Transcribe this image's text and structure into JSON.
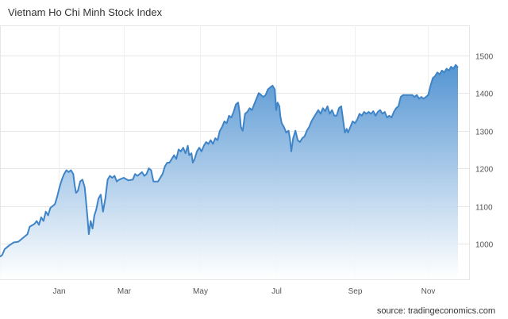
{
  "chart_data": {
    "type": "area",
    "title": "Vietnam Ho Chi Minh Stock Index",
    "source": "source: tradingeconomics.com",
    "xlabel": "",
    "ylabel": "",
    "x_ticks": [
      {
        "label": "Jan",
        "t": 0.129
      },
      {
        "label": "Mar",
        "t": 0.27
      },
      {
        "label": "May",
        "t": 0.436
      },
      {
        "label": "Jul",
        "t": 0.603
      },
      {
        "label": "Sep",
        "t": 0.774
      },
      {
        "label": "Nov",
        "t": 0.935
      }
    ],
    "y_ticks": [
      1000,
      1100,
      1200,
      1300,
      1400,
      1500
    ],
    "ylim": [
      905,
      1580
    ],
    "grid": true,
    "colors": {
      "line": "#3f84c7",
      "fill_top": "#4a8fd0",
      "fill_bottom": "#ffffff"
    },
    "series": [
      {
        "values": [
          [
            0.0,
            965
          ],
          [
            0.005,
            970
          ],
          [
            0.01,
            985
          ],
          [
            0.02,
            995
          ],
          [
            0.03,
            1003
          ],
          [
            0.04,
            1005
          ],
          [
            0.05,
            1015
          ],
          [
            0.06,
            1025
          ],
          [
            0.065,
            1045
          ],
          [
            0.075,
            1052
          ],
          [
            0.08,
            1060
          ],
          [
            0.085,
            1050
          ],
          [
            0.09,
            1070
          ],
          [
            0.095,
            1060
          ],
          [
            0.1,
            1085
          ],
          [
            0.105,
            1075
          ],
          [
            0.11,
            1095
          ],
          [
            0.115,
            1100
          ],
          [
            0.12,
            1105
          ],
          [
            0.125,
            1125
          ],
          [
            0.13,
            1150
          ],
          [
            0.135,
            1170
          ],
          [
            0.14,
            1185
          ],
          [
            0.145,
            1195
          ],
          [
            0.15,
            1190
          ],
          [
            0.155,
            1195
          ],
          [
            0.16,
            1185
          ],
          [
            0.163,
            1155
          ],
          [
            0.166,
            1135
          ],
          [
            0.17,
            1140
          ],
          [
            0.175,
            1165
          ],
          [
            0.18,
            1170
          ],
          [
            0.185,
            1150
          ],
          [
            0.188,
            1110
          ],
          [
            0.191,
            1070
          ],
          [
            0.194,
            1025
          ],
          [
            0.198,
            1060
          ],
          [
            0.202,
            1040
          ],
          [
            0.206,
            1075
          ],
          [
            0.21,
            1090
          ],
          [
            0.215,
            1120
          ],
          [
            0.22,
            1130
          ],
          [
            0.225,
            1085
          ],
          [
            0.23,
            1120
          ],
          [
            0.235,
            1170
          ],
          [
            0.24,
            1180
          ],
          [
            0.245,
            1175
          ],
          [
            0.25,
            1180
          ],
          [
            0.255,
            1165
          ],
          [
            0.26,
            1170
          ],
          [
            0.27,
            1175
          ],
          [
            0.28,
            1168
          ],
          [
            0.29,
            1170
          ],
          [
            0.295,
            1185
          ],
          [
            0.3,
            1180
          ],
          [
            0.31,
            1190
          ],
          [
            0.315,
            1180
          ],
          [
            0.32,
            1185
          ],
          [
            0.325,
            1200
          ],
          [
            0.33,
            1195
          ],
          [
            0.335,
            1165
          ],
          [
            0.345,
            1165
          ],
          [
            0.355,
            1185
          ],
          [
            0.36,
            1205
          ],
          [
            0.365,
            1215
          ],
          [
            0.37,
            1215
          ],
          [
            0.375,
            1225
          ],
          [
            0.38,
            1235
          ],
          [
            0.385,
            1225
          ],
          [
            0.39,
            1250
          ],
          [
            0.395,
            1245
          ],
          [
            0.4,
            1255
          ],
          [
            0.405,
            1240
          ],
          [
            0.41,
            1260
          ],
          [
            0.413,
            1235
          ],
          [
            0.418,
            1240
          ],
          [
            0.421,
            1215
          ],
          [
            0.425,
            1225
          ],
          [
            0.43,
            1245
          ],
          [
            0.435,
            1255
          ],
          [
            0.44,
            1245
          ],
          [
            0.445,
            1260
          ],
          [
            0.45,
            1270
          ],
          [
            0.455,
            1265
          ],
          [
            0.46,
            1275
          ],
          [
            0.465,
            1265
          ],
          [
            0.47,
            1280
          ],
          [
            0.475,
            1275
          ],
          [
            0.48,
            1300
          ],
          [
            0.485,
            1310
          ],
          [
            0.49,
            1325
          ],
          [
            0.495,
            1320
          ],
          [
            0.5,
            1340
          ],
          [
            0.505,
            1335
          ],
          [
            0.51,
            1350
          ],
          [
            0.515,
            1370
          ],
          [
            0.52,
            1375
          ],
          [
            0.523,
            1350
          ],
          [
            0.526,
            1310
          ],
          [
            0.53,
            1300
          ],
          [
            0.535,
            1345
          ],
          [
            0.54,
            1350
          ],
          [
            0.545,
            1360
          ],
          [
            0.55,
            1355
          ],
          [
            0.555,
            1370
          ],
          [
            0.56,
            1385
          ],
          [
            0.565,
            1400
          ],
          [
            0.57,
            1395
          ],
          [
            0.575,
            1390
          ],
          [
            0.58,
            1395
          ],
          [
            0.585,
            1410
          ],
          [
            0.59,
            1415
          ],
          [
            0.595,
            1420
          ],
          [
            0.6,
            1410
          ],
          [
            0.603,
            1355
          ],
          [
            0.606,
            1375
          ],
          [
            0.61,
            1365
          ],
          [
            0.612,
            1340
          ],
          [
            0.615,
            1320
          ],
          [
            0.62,
            1310
          ],
          [
            0.625,
            1295
          ],
          [
            0.63,
            1300
          ],
          [
            0.633,
            1280
          ],
          [
            0.636,
            1245
          ],
          [
            0.64,
            1280
          ],
          [
            0.645,
            1300
          ],
          [
            0.65,
            1275
          ],
          [
            0.655,
            1270
          ],
          [
            0.66,
            1280
          ],
          [
            0.665,
            1285
          ],
          [
            0.67,
            1300
          ],
          [
            0.675,
            1310
          ],
          [
            0.68,
            1325
          ],
          [
            0.685,
            1335
          ],
          [
            0.69,
            1345
          ],
          [
            0.695,
            1355
          ],
          [
            0.7,
            1345
          ],
          [
            0.705,
            1360
          ],
          [
            0.71,
            1352
          ],
          [
            0.715,
            1365
          ],
          [
            0.72,
            1345
          ],
          [
            0.725,
            1355
          ],
          [
            0.73,
            1340
          ],
          [
            0.735,
            1340
          ],
          [
            0.74,
            1360
          ],
          [
            0.745,
            1365
          ],
          [
            0.75,
            1320
          ],
          [
            0.753,
            1295
          ],
          [
            0.757,
            1305
          ],
          [
            0.76,
            1295
          ],
          [
            0.765,
            1310
          ],
          [
            0.77,
            1325
          ],
          [
            0.775,
            1320
          ],
          [
            0.78,
            1330
          ],
          [
            0.785,
            1345
          ],
          [
            0.79,
            1340
          ],
          [
            0.795,
            1350
          ],
          [
            0.8,
            1345
          ],
          [
            0.805,
            1350
          ],
          [
            0.81,
            1345
          ],
          [
            0.815,
            1352
          ],
          [
            0.82,
            1340
          ],
          [
            0.825,
            1350
          ],
          [
            0.83,
            1355
          ],
          [
            0.835,
            1345
          ],
          [
            0.84,
            1350
          ],
          [
            0.845,
            1335
          ],
          [
            0.85,
            1340
          ],
          [
            0.855,
            1335
          ],
          [
            0.86,
            1350
          ],
          [
            0.865,
            1360
          ],
          [
            0.87,
            1365
          ],
          [
            0.875,
            1390
          ],
          [
            0.88,
            1395
          ],
          [
            0.89,
            1395
          ],
          [
            0.9,
            1395
          ],
          [
            0.905,
            1390
          ],
          [
            0.91,
            1395
          ],
          [
            0.915,
            1385
          ],
          [
            0.92,
            1390
          ],
          [
            0.925,
            1385
          ],
          [
            0.93,
            1390
          ],
          [
            0.935,
            1395
          ],
          [
            0.94,
            1420
          ],
          [
            0.945,
            1440
          ],
          [
            0.95,
            1445
          ],
          [
            0.955,
            1455
          ],
          [
            0.96,
            1450
          ],
          [
            0.965,
            1460
          ],
          [
            0.97,
            1455
          ],
          [
            0.975,
            1465
          ],
          [
            0.98,
            1460
          ],
          [
            0.985,
            1470
          ],
          [
            0.99,
            1465
          ],
          [
            0.995,
            1475
          ],
          [
            1.0,
            1468
          ]
        ]
      }
    ]
  }
}
